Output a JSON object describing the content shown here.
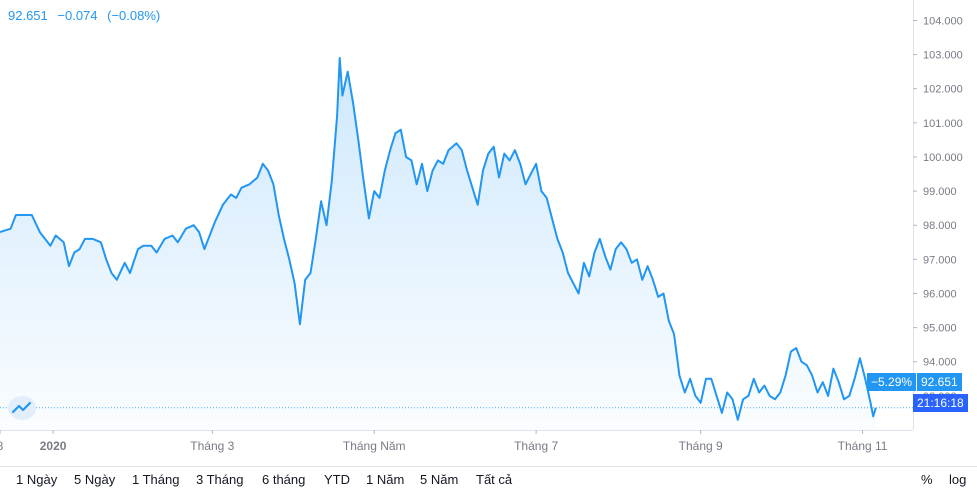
{
  "quote": {
    "last": "92.651",
    "change": "−0.074",
    "change_pct": "(−0.08%)"
  },
  "badges": {
    "pct": "−5.29%",
    "price": "92.651",
    "time": "21:16:18"
  },
  "range_buttons": [
    "1 Ngày",
    "5 Ngày",
    "1 Tháng",
    "3 Tháng",
    "6 tháng",
    "YTD",
    "1 Năm",
    "5 Năm",
    "Tất cả"
  ],
  "scale_buttons": {
    "percent": "%",
    "log": "log"
  },
  "colors": {
    "line": "#2196f3",
    "badge": "#2196f3",
    "time_badge": "#2962ff",
    "grid": "#e0e3eb"
  },
  "chart_data": {
    "type": "area",
    "title": "",
    "xlabel": "",
    "ylabel": "",
    "ylim": [
      92.0,
      104.6
    ],
    "y_ticks": [
      "104.000",
      "103.000",
      "102.000",
      "101.000",
      "100.000",
      "99.000",
      "98.000",
      "97.000",
      "96.000",
      "95.000",
      "94.000",
      "93.000"
    ],
    "x_tick_labels": [
      "8",
      "2020",
      "Tháng 3",
      "Tháng Năm",
      "Tháng 7",
      "Tháng 9",
      "Tháng 11"
    ],
    "x_range": [
      "2019-12-12",
      "2020-11-20"
    ],
    "x_ticks": [
      "2019-12-12",
      "2020-01-01",
      "2020-03-01",
      "2020-05-01",
      "2020-07-01",
      "2020-09-01",
      "2020-11-01"
    ],
    "series": [
      {
        "name": "",
        "points": [
          [
            "2019-12-12",
            97.8
          ],
          [
            "2019-12-16",
            97.9
          ],
          [
            "2019-12-18",
            98.3
          ],
          [
            "2019-12-20",
            98.3
          ],
          [
            "2019-12-24",
            98.3
          ],
          [
            "2019-12-27",
            97.8
          ],
          [
            "2019-12-31",
            97.4
          ],
          [
            "2020-01-02",
            97.7
          ],
          [
            "2020-01-05",
            97.5
          ],
          [
            "2020-01-07",
            96.8
          ],
          [
            "2020-01-09",
            97.2
          ],
          [
            "2020-01-11",
            97.3
          ],
          [
            "2020-01-13",
            97.6
          ],
          [
            "2020-01-16",
            97.6
          ],
          [
            "2020-01-19",
            97.5
          ],
          [
            "2020-01-21",
            97.0
          ],
          [
            "2020-01-23",
            96.6
          ],
          [
            "2020-01-25",
            96.4
          ],
          [
            "2020-01-28",
            96.9
          ],
          [
            "2020-01-30",
            96.6
          ],
          [
            "2020-02-02",
            97.3
          ],
          [
            "2020-02-04",
            97.4
          ],
          [
            "2020-02-07",
            97.4
          ],
          [
            "2020-02-09",
            97.2
          ],
          [
            "2020-02-12",
            97.6
          ],
          [
            "2020-02-15",
            97.7
          ],
          [
            "2020-02-17",
            97.5
          ],
          [
            "2020-02-20",
            97.9
          ],
          [
            "2020-02-23",
            98.0
          ],
          [
            "2020-02-25",
            97.8
          ],
          [
            "2020-02-27",
            97.3
          ],
          [
            "2020-03-02",
            98.1
          ],
          [
            "2020-03-05",
            98.6
          ],
          [
            "2020-03-08",
            98.9
          ],
          [
            "2020-03-10",
            98.8
          ],
          [
            "2020-03-12",
            99.1
          ],
          [
            "2020-03-15",
            99.2
          ],
          [
            "2020-03-18",
            99.4
          ],
          [
            "2020-03-20",
            99.8
          ],
          [
            "2020-03-22",
            99.6
          ],
          [
            "2020-03-24",
            99.2
          ],
          [
            "2020-03-26",
            98.3
          ],
          [
            "2020-03-28",
            97.6
          ],
          [
            "2020-03-30",
            97.0
          ],
          [
            "2020-04-01",
            96.3
          ],
          [
            "2020-04-03",
            95.1
          ],
          [
            "2020-04-05",
            96.4
          ],
          [
            "2020-04-07",
            96.6
          ],
          [
            "2020-04-09",
            97.6
          ],
          [
            "2020-04-11",
            98.7
          ],
          [
            "2020-04-13",
            98.0
          ],
          [
            "2020-04-15",
            99.3
          ],
          [
            "2020-04-17",
            101.2
          ],
          [
            "2020-04-18",
            102.9
          ],
          [
            "2020-04-19",
            101.8
          ],
          [
            "2020-04-21",
            102.5
          ],
          [
            "2020-04-23",
            101.6
          ],
          [
            "2020-04-25",
            100.5
          ],
          [
            "2020-04-27",
            99.3
          ],
          [
            "2020-04-29",
            98.2
          ],
          [
            "2020-05-01",
            99.0
          ],
          [
            "2020-05-03",
            98.8
          ],
          [
            "2020-05-05",
            99.6
          ],
          [
            "2020-05-07",
            100.2
          ],
          [
            "2020-05-09",
            100.7
          ],
          [
            "2020-05-11",
            100.8
          ],
          [
            "2020-05-13",
            100.0
          ],
          [
            "2020-05-15",
            99.9
          ],
          [
            "2020-05-17",
            99.2
          ],
          [
            "2020-05-19",
            99.8
          ],
          [
            "2020-05-21",
            99.0
          ],
          [
            "2020-05-23",
            99.6
          ],
          [
            "2020-05-25",
            99.9
          ],
          [
            "2020-05-27",
            99.8
          ],
          [
            "2020-05-29",
            100.2
          ],
          [
            "2020-06-01",
            100.4
          ],
          [
            "2020-06-03",
            100.2
          ],
          [
            "2020-06-05",
            99.6
          ],
          [
            "2020-06-07",
            99.1
          ],
          [
            "2020-06-09",
            98.6
          ],
          [
            "2020-06-11",
            99.6
          ],
          [
            "2020-06-13",
            100.1
          ],
          [
            "2020-06-15",
            100.3
          ],
          [
            "2020-06-17",
            99.4
          ],
          [
            "2020-06-19",
            100.1
          ],
          [
            "2020-06-21",
            99.9
          ],
          [
            "2020-06-23",
            100.2
          ],
          [
            "2020-06-25",
            99.8
          ],
          [
            "2020-06-27",
            99.2
          ],
          [
            "2020-06-29",
            99.5
          ],
          [
            "2020-07-01",
            99.8
          ],
          [
            "2020-07-03",
            99.0
          ],
          [
            "2020-07-05",
            98.8
          ],
          [
            "2020-07-07",
            98.2
          ],
          [
            "2020-07-09",
            97.6
          ],
          [
            "2020-07-11",
            97.2
          ],
          [
            "2020-07-13",
            96.6
          ],
          [
            "2020-07-15",
            96.3
          ],
          [
            "2020-07-17",
            96.0
          ],
          [
            "2020-07-19",
            96.9
          ],
          [
            "2020-07-21",
            96.5
          ],
          [
            "2020-07-23",
            97.2
          ],
          [
            "2020-07-25",
            97.6
          ],
          [
            "2020-07-27",
            97.1
          ],
          [
            "2020-07-29",
            96.7
          ],
          [
            "2020-07-31",
            97.3
          ],
          [
            "2020-08-02",
            97.5
          ],
          [
            "2020-08-04",
            97.3
          ],
          [
            "2020-08-06",
            96.9
          ],
          [
            "2020-08-08",
            97.0
          ],
          [
            "2020-08-10",
            96.4
          ],
          [
            "2020-08-12",
            96.8
          ],
          [
            "2020-08-14",
            96.4
          ],
          [
            "2020-08-16",
            95.9
          ],
          [
            "2020-08-18",
            96.0
          ],
          [
            "2020-08-20",
            95.2
          ],
          [
            "2020-08-22",
            94.8
          ],
          [
            "2020-08-24",
            93.6
          ],
          [
            "2020-08-26",
            93.1
          ],
          [
            "2020-08-28",
            93.5
          ],
          [
            "2020-08-30",
            93.0
          ],
          [
            "2020-09-01",
            92.8
          ],
          [
            "2020-09-03",
            93.5
          ],
          [
            "2020-09-05",
            93.5
          ],
          [
            "2020-09-07",
            93.0
          ],
          [
            "2020-09-09",
            92.5
          ],
          [
            "2020-09-11",
            93.1
          ],
          [
            "2020-09-13",
            92.9
          ],
          [
            "2020-09-15",
            92.3
          ],
          [
            "2020-09-17",
            92.9
          ],
          [
            "2020-09-19",
            93.0
          ],
          [
            "2020-09-21",
            93.5
          ],
          [
            "2020-09-23",
            93.1
          ],
          [
            "2020-09-25",
            93.3
          ],
          [
            "2020-09-27",
            93.0
          ],
          [
            "2020-09-29",
            92.9
          ],
          [
            "2020-10-01",
            93.1
          ],
          [
            "2020-10-03",
            93.6
          ],
          [
            "2020-10-05",
            94.3
          ],
          [
            "2020-10-07",
            94.4
          ],
          [
            "2020-10-09",
            94.0
          ],
          [
            "2020-10-11",
            93.9
          ],
          [
            "2020-10-13",
            93.6
          ],
          [
            "2020-10-15",
            93.1
          ],
          [
            "2020-10-17",
            93.4
          ],
          [
            "2020-10-19",
            93.0
          ],
          [
            "2020-10-21",
            93.8
          ],
          [
            "2020-10-23",
            93.4
          ],
          [
            "2020-10-25",
            92.9
          ],
          [
            "2020-10-27",
            93.0
          ],
          [
            "2020-10-29",
            93.5
          ],
          [
            "2020-10-31",
            94.1
          ],
          [
            "2020-11-02",
            93.5
          ],
          [
            "2020-11-04",
            92.8
          ],
          [
            "2020-11-05",
            92.4
          ],
          [
            "2020-11-06",
            92.651
          ]
        ]
      }
    ]
  }
}
